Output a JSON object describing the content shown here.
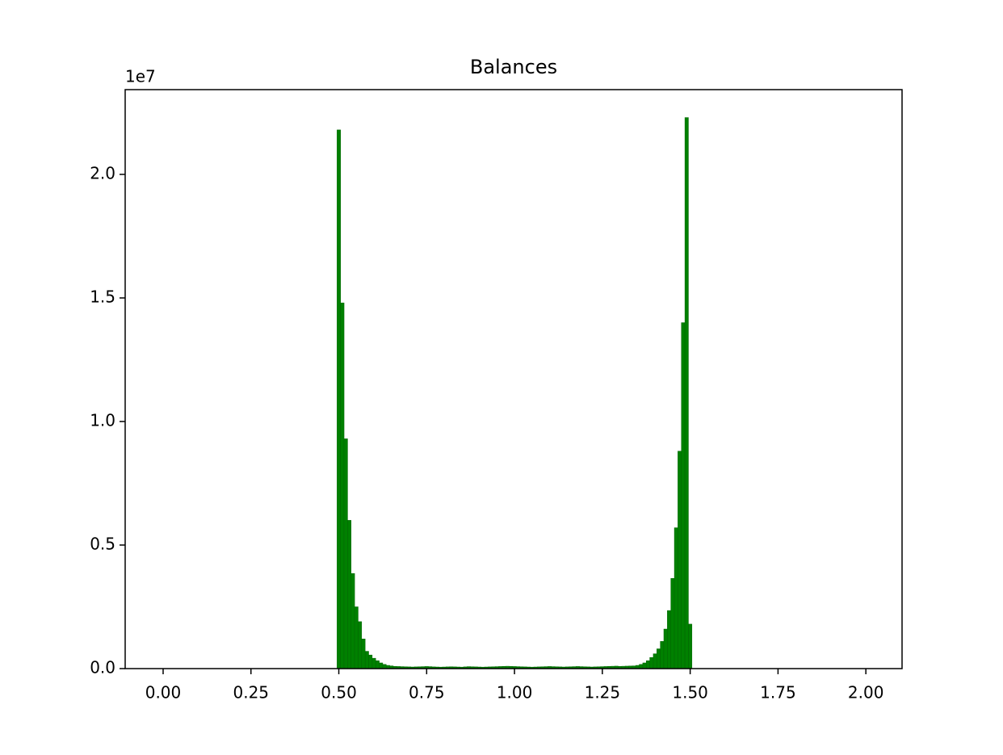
{
  "chart_data": {
    "type": "histogram",
    "title": "Balances",
    "y_offset_label": "1e7",
    "color": "green",
    "edgecolor": "#006400",
    "bins": [
      0.495,
      0.505,
      0.515,
      0.525,
      0.535,
      0.545,
      0.555,
      0.565,
      0.575,
      0.585,
      0.595,
      0.605,
      0.615,
      0.625,
      0.635,
      0.645,
      0.655,
      0.665,
      0.675,
      0.685,
      0.695,
      0.705,
      0.715,
      0.725,
      0.735,
      0.745,
      0.755,
      0.765,
      0.775,
      0.785,
      0.795,
      0.805,
      0.815,
      0.825,
      0.835,
      0.845,
      0.855,
      0.865,
      0.875,
      0.885,
      0.895,
      0.905,
      0.915,
      0.925,
      0.935,
      0.945,
      0.955,
      0.965,
      0.975,
      0.985,
      0.995,
      1.005,
      1.015,
      1.025,
      1.035,
      1.045,
      1.055,
      1.065,
      1.075,
      1.085,
      1.095,
      1.105,
      1.115,
      1.125,
      1.135,
      1.145,
      1.155,
      1.165,
      1.175,
      1.185,
      1.195,
      1.205,
      1.215,
      1.225,
      1.235,
      1.245,
      1.255,
      1.265,
      1.275,
      1.285,
      1.295,
      1.305,
      1.315,
      1.325,
      1.335,
      1.345,
      1.355,
      1.365,
      1.375,
      1.385,
      1.395,
      1.405,
      1.415,
      1.425,
      1.435,
      1.445,
      1.455,
      1.465,
      1.475,
      1.485,
      1.495,
      1.505
    ],
    "counts": [
      21800000,
      14800000,
      9300000,
      6000000,
      3850000,
      2500000,
      1900000,
      1200000,
      700000,
      550000,
      420000,
      320000,
      230000,
      170000,
      130000,
      110000,
      90000,
      85000,
      80000,
      75000,
      70000,
      65000,
      70000,
      75000,
      80000,
      85000,
      80000,
      70000,
      65000,
      60000,
      65000,
      70000,
      75000,
      70000,
      65000,
      60000,
      70000,
      80000,
      75000,
      70000,
      65000,
      60000,
      65000,
      70000,
      75000,
      80000,
      85000,
      90000,
      95000,
      90000,
      85000,
      80000,
      75000,
      70000,
      65000,
      60000,
      65000,
      70000,
      75000,
      80000,
      85000,
      80000,
      75000,
      70000,
      65000,
      70000,
      75000,
      80000,
      85000,
      80000,
      75000,
      70000,
      65000,
      70000,
      75000,
      80000,
      85000,
      90000,
      95000,
      100000,
      90000,
      95000,
      100000,
      105000,
      110000,
      130000,
      170000,
      230000,
      320000,
      450000,
      600000,
      800000,
      1100000,
      1600000,
      2350000,
      3650000,
      5700000,
      8800000,
      14000000,
      22300000,
      1800000
    ],
    "xlim": [
      -0.108,
      2.103
    ],
    "ylim": [
      0,
      23430000
    ],
    "xticks": [
      {
        "value": 0,
        "label": "0.00"
      },
      {
        "value": 0.25,
        "label": "0.25"
      },
      {
        "value": 0.5,
        "label": "0.50"
      },
      {
        "value": 0.75,
        "label": "0.75"
      },
      {
        "value": 1,
        "label": "1.00"
      },
      {
        "value": 1.25,
        "label": "1.25"
      },
      {
        "value": 1.5,
        "label": "1.50"
      },
      {
        "value": 1.75,
        "label": "1.75"
      },
      {
        "value": 2,
        "label": "2.00"
      }
    ],
    "yticks": [
      {
        "value": 0,
        "label": "0.0"
      },
      {
        "value": 5000000,
        "label": "0.5"
      },
      {
        "value": 10000000,
        "label": "1.0"
      },
      {
        "value": 15000000,
        "label": "1.5"
      },
      {
        "value": 20000000,
        "label": "2.0"
      }
    ]
  }
}
